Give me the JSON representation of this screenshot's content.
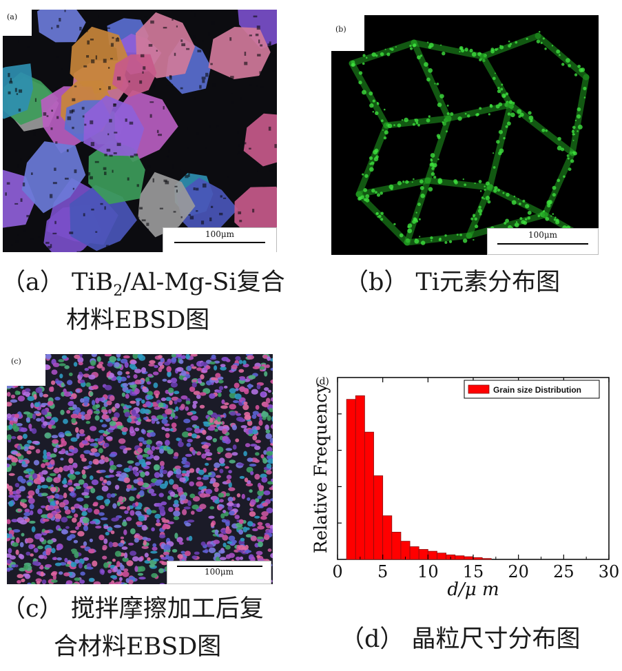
{
  "panels": {
    "a": {
      "tag": "(a)",
      "scalebar": "100μm"
    },
    "b": {
      "tag": "(b)",
      "scalebar": "100μm"
    },
    "c": {
      "tag": "(c)",
      "scalebar": "100μm"
    }
  },
  "captions": {
    "a_line1_prefix": "（a）  TiB",
    "a_line1_sub": "2",
    "a_line1_suffix": "/Al-Mg-Si复合",
    "a_line2": "材料EBSD图",
    "b": "（b）  Ti元素分布图",
    "c_line1": "（c）  搅拌摩擦加工后复",
    "c_line2": "合材料EBSD图",
    "d": "（d）  晶粒尺寸分布图"
  },
  "chart_data": {
    "type": "bar",
    "panel_tag": "(d)",
    "xlabel": "d/μ m",
    "ylabel": "Relative Frequency",
    "legend": "Grain size Distribution",
    "legend_position": "top-right",
    "color": "#ff0000",
    "xlim": [
      0,
      30
    ],
    "xticks": [
      0,
      5,
      10,
      15,
      20,
      25,
      30
    ],
    "ylim": [
      0,
      1
    ],
    "y_tick_labels_shown": false,
    "bin_width": 1,
    "x": [
      1.5,
      2.5,
      3.5,
      4.5,
      5.5,
      6.5,
      7.5,
      8.5,
      9.5,
      10.5,
      11.5,
      12.5,
      13.5,
      14.5,
      15.5,
      16.5
    ],
    "values": [
      0.88,
      0.9,
      0.7,
      0.46,
      0.24,
      0.15,
      0.1,
      0.07,
      0.055,
      0.045,
      0.035,
      0.025,
      0.02,
      0.015,
      0.01,
      0.005
    ]
  }
}
